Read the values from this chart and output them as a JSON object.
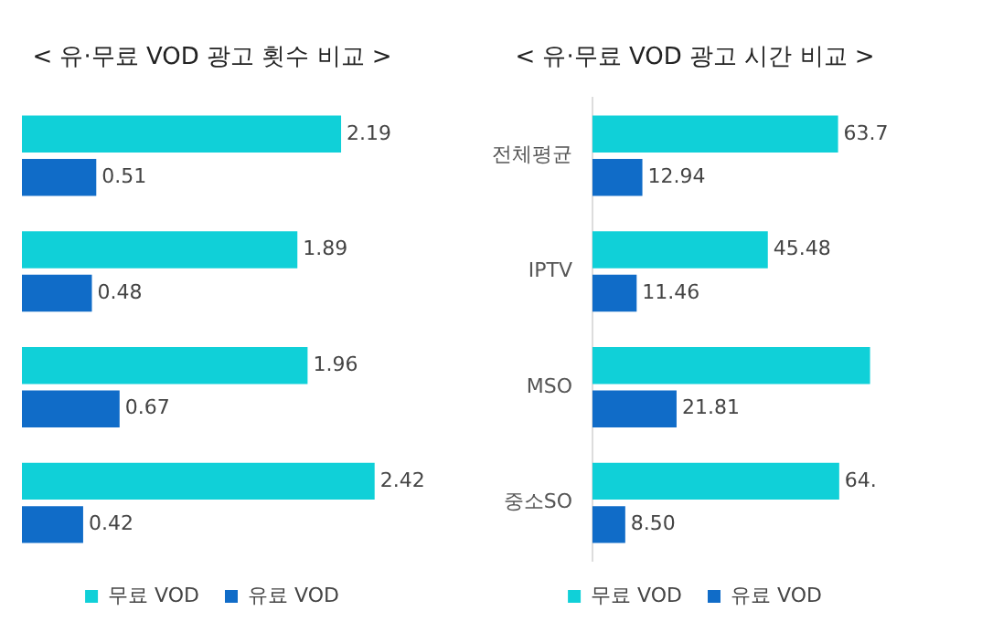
{
  "chart_data": [
    {
      "type": "bar",
      "orientation": "horizontal",
      "title": "< 유·무료 VOD 광고 횟수 비교 >",
      "categories": [
        null,
        null,
        null,
        null
      ],
      "data_labels": true,
      "legend": "bottom",
      "series": [
        {
          "name": "무료 VOD",
          "color": "#10d0d8",
          "values": [
            2.19,
            1.89,
            1.96,
            2.42
          ]
        },
        {
          "name": "유료 VOD",
          "color": "#106cc8",
          "values": [
            0.51,
            0.48,
            0.67,
            0.42
          ]
        }
      ]
    },
    {
      "type": "bar",
      "orientation": "horizontal",
      "title": "< 유·무료 VOD 광고 시간 비교 >",
      "categories": [
        "전체평균",
        "IPTV",
        "MSO",
        "중소SO"
      ],
      "legend": "bottom",
      "series": [
        {
          "name": "무료 VOD",
          "color": "#10d0d8",
          "values": [
            63.7,
            45.48,
            72,
            64
          ],
          "value_labels": [
            "63.7",
            "45.48",
            null,
            "64."
          ]
        },
        {
          "name": "유료 VOD",
          "color": "#106cc8",
          "values": [
            12.94,
            11.46,
            21.81,
            8.5
          ],
          "value_labels": [
            "12.94",
            "11.46",
            "21.81",
            "8.50"
          ]
        }
      ]
    }
  ]
}
